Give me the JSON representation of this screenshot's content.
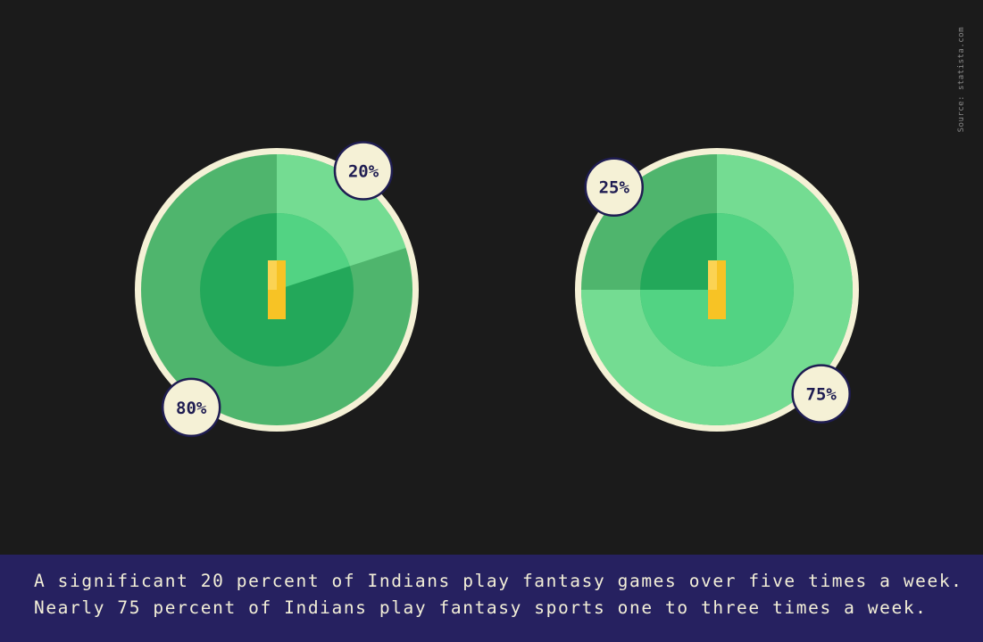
{
  "source": "Source: statista.com",
  "caption": {
    "line1": "A significant 20 percent of Indians play fantasy games over five times a week.",
    "line2": "Nearly 75 percent of Indians play fantasy sports one to three times a week."
  },
  "colors": {
    "background": "#1b1b1b",
    "ring": "#f5f1d6",
    "field_outer": "#4fb56d",
    "field_inner": "#23a85a",
    "highlight_outer": "#74dc92",
    "highlight_inner": "#52d383",
    "pitch": "#f7c325",
    "badge_fill": "#f5f1d6",
    "badge_border": "#1f1d52",
    "caption_bar": "#262160"
  },
  "chart_data": [
    {
      "type": "pie",
      "labels": [
        "20%",
        "80%"
      ],
      "values": [
        20,
        80
      ],
      "highlight_index": 0
    },
    {
      "type": "pie",
      "labels": [
        "75%",
        "25%"
      ],
      "values": [
        75,
        25
      ],
      "highlight_index": 0
    }
  ]
}
